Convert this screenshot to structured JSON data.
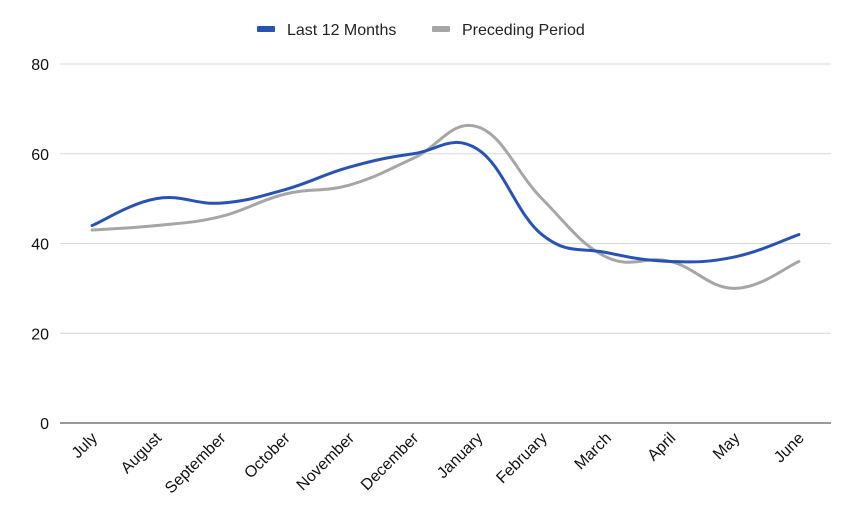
{
  "chart_data": {
    "type": "line",
    "categories": [
      "July",
      "August",
      "September",
      "October",
      "November",
      "December",
      "January",
      "February",
      "March",
      "April",
      "May",
      "June"
    ],
    "series": [
      {
        "name": "Last 12 Months",
        "color": "#2853b5",
        "values": [
          44,
          50,
          49,
          52,
          57,
          60,
          61,
          42,
          38,
          36,
          37,
          42
        ]
      },
      {
        "name": "Preceding Period",
        "color": "#a6a6a6",
        "values": [
          43,
          44,
          46,
          51,
          53,
          59,
          66,
          50,
          37,
          36,
          30,
          36
        ]
      }
    ],
    "title": "",
    "xlabel": "",
    "ylabel": "",
    "ylim": [
      0,
      80
    ],
    "yticks": [
      0,
      20,
      40,
      60,
      80
    ],
    "grid": true,
    "smooth": true,
    "legend_position": "top-center"
  }
}
